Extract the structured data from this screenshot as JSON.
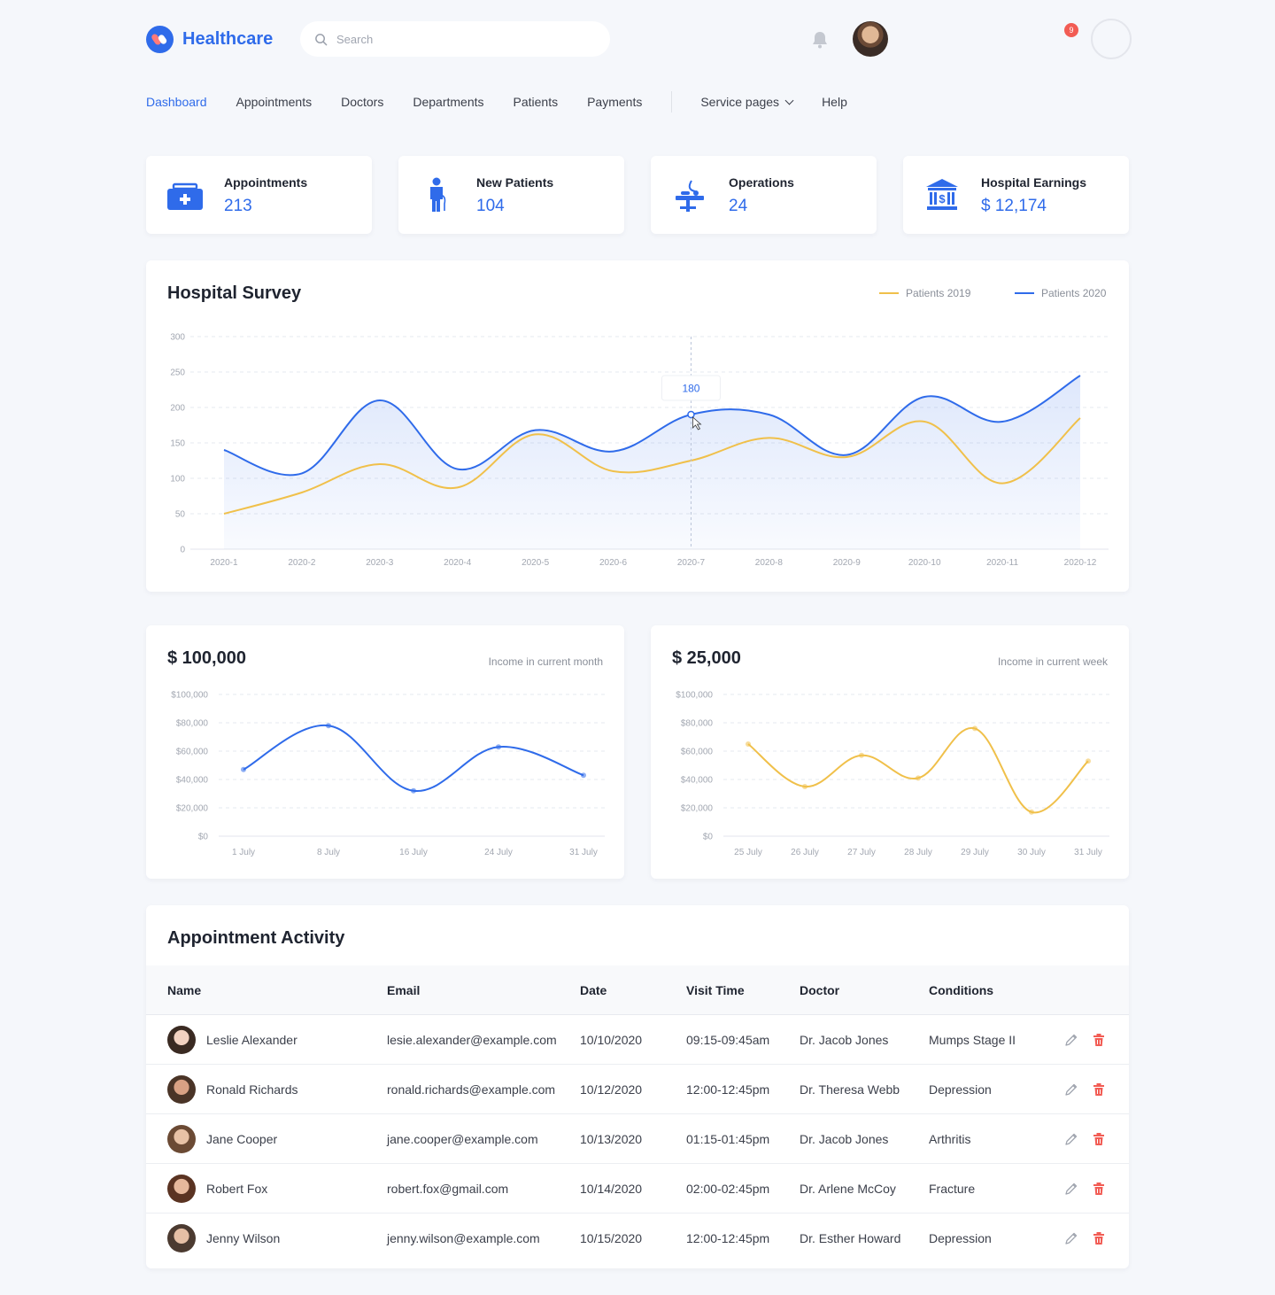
{
  "brand": {
    "name": "Healthcare"
  },
  "search": {
    "placeholder": "Search",
    "value": ""
  },
  "notifications": {
    "count": "9"
  },
  "nav": {
    "items": [
      "Dashboard",
      "Appointments",
      "Doctors",
      "Departments",
      "Patients",
      "Payments"
    ],
    "service_pages": "Service pages",
    "help": "Help",
    "active": "Dashboard"
  },
  "stats": [
    {
      "label": "Appointments",
      "value": "213",
      "icon": "medical-briefcase-icon"
    },
    {
      "label": "New Patients",
      "value": "104",
      "icon": "patient-icon"
    },
    {
      "label": "Operations",
      "value": "24",
      "icon": "operating-table-icon"
    },
    {
      "label": "Hospital Earnings",
      "value": "$ 12,174",
      "icon": "bank-icon"
    }
  ],
  "colors": {
    "accent": "#2f6bea",
    "yellow": "#f0c04a",
    "danger": "#f25c54"
  },
  "survey": {
    "title": "Hospital Survey",
    "legend": [
      "Patients 2019",
      "Patients 2020"
    ],
    "tooltip": "180"
  },
  "income_month": {
    "amount": "$ 100,000",
    "subtitle": "Income in current month"
  },
  "income_week": {
    "amount": "$ 25,000",
    "subtitle": "Income in current week"
  },
  "chart_data": [
    {
      "type": "area",
      "title": "Hospital Survey",
      "categories": [
        "2020-1",
        "2020-2",
        "2020-3",
        "2020-4",
        "2020-5",
        "2020-6",
        "2020-7",
        "2020-8",
        "2020-9",
        "2020-10",
        "2020-11",
        "2020-12"
      ],
      "yticks": [
        "0",
        "50",
        "100",
        "150",
        "200",
        "250",
        "300"
      ],
      "ylim": [
        0,
        300
      ],
      "grid": true,
      "legend_position": "top-right",
      "series": [
        {
          "name": "Patients 2019",
          "color": "#f0c04a",
          "values": [
            50,
            80,
            120,
            87,
            162,
            110,
            125,
            157,
            130,
            180,
            93,
            185
          ]
        },
        {
          "name": "Patients 2020",
          "color": "#2f6bea",
          "values": [
            140,
            107,
            210,
            113,
            168,
            138,
            190,
            190,
            133,
            215,
            180,
            245
          ]
        }
      ]
    },
    {
      "type": "line",
      "title": "$ 100,000",
      "categories": [
        "1 July",
        "8 July",
        "16 July",
        "24 July",
        "31 July"
      ],
      "yticks": [
        "$0",
        "$20,000",
        "$40,000",
        "$60,000",
        "$80,000",
        "$100,000"
      ],
      "ylim": [
        0,
        100000
      ],
      "series": [
        {
          "color": "#2f6bea",
          "values": [
            47000,
            78000,
            32000,
            63000,
            43000
          ]
        }
      ]
    },
    {
      "type": "line",
      "title": "$ 25,000",
      "categories": [
        "25 July",
        "26 July",
        "27 July",
        "28 July",
        "29 July",
        "30 July",
        "31 July"
      ],
      "yticks": [
        "$0",
        "$20,000",
        "$40,000",
        "$60,000",
        "$80,000",
        "$100,000"
      ],
      "ylim": [
        0,
        100000
      ],
      "series": [
        {
          "color": "#f0c04a",
          "values": [
            65000,
            35000,
            57000,
            41000,
            76000,
            17000,
            53000
          ]
        }
      ]
    }
  ],
  "activity": {
    "title": "Appointment Activity",
    "columns": [
      "Name",
      "Email",
      "Date",
      "Visit Time",
      "Doctor",
      "Conditions"
    ],
    "rows": [
      {
        "name": "Leslie Alexander",
        "email": "lesie.alexander@example.com",
        "date": "10/10/2020",
        "time": "09:15-09:45am",
        "doctor": "Dr. Jacob Jones",
        "condition": "Mumps Stage II"
      },
      {
        "name": "Ronald Richards",
        "email": "ronald.richards@example.com",
        "date": "10/12/2020",
        "time": "12:00-12:45pm",
        "doctor": "Dr. Theresa Webb",
        "condition": "Depression"
      },
      {
        "name": "Jane Cooper",
        "email": "jane.cooper@example.com",
        "date": "10/13/2020",
        "time": "01:15-01:45pm",
        "doctor": "Dr. Jacob Jones",
        "condition": "Arthritis"
      },
      {
        "name": "Robert Fox",
        "email": "robert.fox@gmail.com",
        "date": "10/14/2020",
        "time": "02:00-02:45pm",
        "doctor": "Dr. Arlene McCoy",
        "condition": "Fracture"
      },
      {
        "name": "Jenny Wilson",
        "email": "jenny.wilson@example.com",
        "date": "10/15/2020",
        "time": "12:00-12:45pm",
        "doctor": "Dr. Esther Howard",
        "condition": "Depression"
      }
    ]
  }
}
